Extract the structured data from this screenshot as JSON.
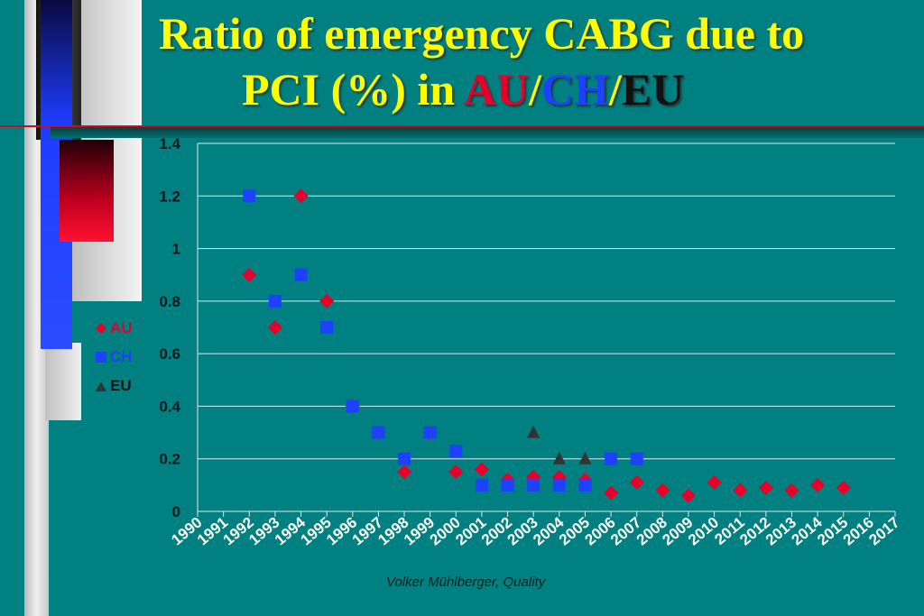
{
  "title": {
    "line1": "Ratio of emergency CABG due to",
    "line2_prefix": "PCI (%) in ",
    "au": "AU",
    "sep1": "/",
    "ch": "CH",
    "sep2": "/",
    "eu": "EU"
  },
  "footer": {
    "credit": "Volker Mühlberger, Quality"
  },
  "colors": {
    "background": "#008080",
    "title": "#ffff00",
    "au": "#e8002a",
    "ch": "#1e40ff",
    "eu": "#333333"
  },
  "chart_data": {
    "type": "scatter",
    "title": "Ratio of emergency CABG due to PCI (%) in AU/CH/EU",
    "xlabel": "",
    "ylabel": "",
    "x_categories": [
      "1990",
      "1991",
      "1992",
      "1993",
      "1994",
      "1995",
      "1996",
      "1997",
      "1998",
      "1999",
      "2000",
      "2001",
      "2002",
      "2003",
      "2004",
      "2005",
      "2006",
      "2007",
      "2008",
      "2009",
      "2010",
      "2011",
      "2012",
      "2013",
      "2014",
      "2015",
      "2016",
      "2017"
    ],
    "ylim": [
      0,
      1.4
    ],
    "y_ticks": [
      "0",
      "0.2",
      "0.4",
      "0.6",
      "0.8",
      "1",
      "1.2",
      "1.4"
    ],
    "grid": true,
    "legend_position": "left",
    "series": [
      {
        "name": "AU",
        "marker": "diamond",
        "color": "#e8002a",
        "points": [
          {
            "x": "1992",
            "y": 0.9
          },
          {
            "x": "1993",
            "y": 0.7
          },
          {
            "x": "1994",
            "y": 1.2
          },
          {
            "x": "1995",
            "y": 0.8
          },
          {
            "x": "1996",
            "y": 0.4
          },
          {
            "x": "1997",
            "y": 0.3
          },
          {
            "x": "1998",
            "y": 0.15
          },
          {
            "x": "1999",
            "y": 0.3
          },
          {
            "x": "2000",
            "y": 0.15
          },
          {
            "x": "2001",
            "y": 0.16
          },
          {
            "x": "2002",
            "y": 0.12
          },
          {
            "x": "2003",
            "y": 0.13
          },
          {
            "x": "2004",
            "y": 0.13
          },
          {
            "x": "2005",
            "y": 0.12
          },
          {
            "x": "2006",
            "y": 0.07
          },
          {
            "x": "2007",
            "y": 0.11
          },
          {
            "x": "2008",
            "y": 0.08
          },
          {
            "x": "2009",
            "y": 0.06
          },
          {
            "x": "2010",
            "y": 0.11
          },
          {
            "x": "2011",
            "y": 0.08
          },
          {
            "x": "2012",
            "y": 0.09
          },
          {
            "x": "2013",
            "y": 0.08
          },
          {
            "x": "2014",
            "y": 0.1
          },
          {
            "x": "2015",
            "y": 0.09
          }
        ]
      },
      {
        "name": "CH",
        "marker": "square",
        "color": "#1e40ff",
        "points": [
          {
            "x": "1992",
            "y": 1.2
          },
          {
            "x": "1993",
            "y": 0.8
          },
          {
            "x": "1994",
            "y": 0.9
          },
          {
            "x": "1995",
            "y": 0.7
          },
          {
            "x": "1996",
            "y": 0.4
          },
          {
            "x": "1997",
            "y": 0.3
          },
          {
            "x": "1998",
            "y": 0.2
          },
          {
            "x": "1999",
            "y": 0.3
          },
          {
            "x": "2000",
            "y": 0.23
          },
          {
            "x": "2001",
            "y": 0.1
          },
          {
            "x": "2002",
            "y": 0.1
          },
          {
            "x": "2003",
            "y": 0.1
          },
          {
            "x": "2004",
            "y": 0.1
          },
          {
            "x": "2005",
            "y": 0.1
          },
          {
            "x": "2006",
            "y": 0.2
          },
          {
            "x": "2007",
            "y": 0.2
          }
        ]
      },
      {
        "name": "EU",
        "marker": "triangle",
        "color": "#333333",
        "points": [
          {
            "x": "2003",
            "y": 0.3
          },
          {
            "x": "2004",
            "y": 0.2
          },
          {
            "x": "2005",
            "y": 0.2
          }
        ]
      }
    ]
  }
}
